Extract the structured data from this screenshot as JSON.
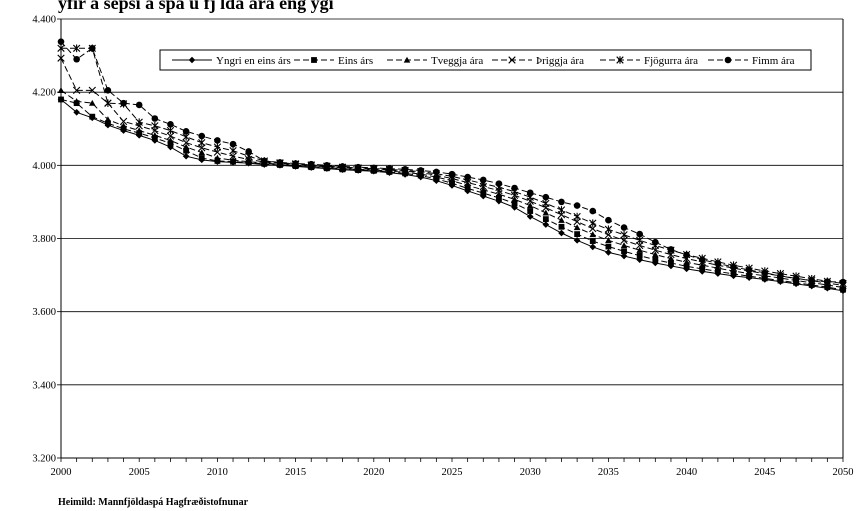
{
  "chart_data": {
    "type": "line",
    "title": "",
    "title_partial_visible": "yfir á sepsi á spá ú fj lda ára eng ygi",
    "xlabel": "",
    "ylabel": "",
    "x": [
      2000,
      2001,
      2002,
      2003,
      2004,
      2005,
      2006,
      2007,
      2008,
      2009,
      2010,
      2011,
      2012,
      2013,
      2014,
      2015,
      2016,
      2017,
      2018,
      2019,
      2020,
      2021,
      2022,
      2023,
      2024,
      2025,
      2026,
      2027,
      2028,
      2029,
      2030,
      2031,
      2032,
      2033,
      2034,
      2035,
      2036,
      2037,
      2038,
      2039,
      2040,
      2041,
      2042,
      2043,
      2044,
      2045,
      2046,
      2047,
      2048,
      2049,
      2050
    ],
    "xlim": [
      2000,
      2050
    ],
    "ylim": [
      3.2,
      4.4
    ],
    "x_ticks": [
      "2000",
      "2005",
      "2010",
      "2015",
      "2020",
      "2025",
      "2030",
      "2035",
      "2040",
      "2045",
      "2050"
    ],
    "y_ticks": [
      "3.200",
      "3.400",
      "3.600",
      "3.800",
      "4.000",
      "4.200",
      "4.400"
    ],
    "grid": "horizontal",
    "legend_position": "top-right",
    "series": [
      {
        "name": "Yngri en eins árs",
        "marker": "diamond",
        "dash": "solid",
        "values": [
          4.18,
          4.145,
          4.13,
          4.11,
          4.095,
          4.082,
          4.068,
          4.05,
          4.025,
          4.015,
          4.01,
          4.008,
          4.006,
          4.002,
          4.0,
          3.997,
          3.994,
          3.991,
          3.988,
          3.986,
          3.984,
          3.98,
          3.975,
          3.968,
          3.958,
          3.945,
          3.93,
          3.916,
          3.902,
          3.885,
          3.86,
          3.838,
          3.815,
          3.795,
          3.777,
          3.762,
          3.752,
          3.742,
          3.733,
          3.725,
          3.717,
          3.71,
          3.704,
          3.698,
          3.693,
          3.688,
          3.682,
          3.676,
          3.67,
          3.664,
          3.657
        ]
      },
      {
        "name": "Eins árs",
        "marker": "square",
        "dash": "6,3",
        "values": [
          4.18,
          4.17,
          4.133,
          4.115,
          4.1,
          4.088,
          4.075,
          4.06,
          4.04,
          4.02,
          4.012,
          4.01,
          4.008,
          4.004,
          4.001,
          3.998,
          3.995,
          3.992,
          3.989,
          3.987,
          3.985,
          3.982,
          3.978,
          3.972,
          3.963,
          3.951,
          3.937,
          3.924,
          3.911,
          3.896,
          3.875,
          3.853,
          3.832,
          3.812,
          3.793,
          3.778,
          3.765,
          3.753,
          3.742,
          3.733,
          3.724,
          3.717,
          3.71,
          3.703,
          3.697,
          3.691,
          3.685,
          3.679,
          3.673,
          3.667,
          3.66
        ]
      },
      {
        "name": "Tveggja ára",
        "marker": "triangle",
        "dash": "6,3",
        "values": [
          4.205,
          4.175,
          4.17,
          4.125,
          4.108,
          4.095,
          4.082,
          4.068,
          4.05,
          4.035,
          4.02,
          4.014,
          4.01,
          4.006,
          4.003,
          4.0,
          3.997,
          3.994,
          3.991,
          3.989,
          3.987,
          3.984,
          3.981,
          3.976,
          3.968,
          3.958,
          3.945,
          3.933,
          3.921,
          3.907,
          3.89,
          3.87,
          3.85,
          3.83,
          3.811,
          3.795,
          3.781,
          3.768,
          3.756,
          3.745,
          3.735,
          3.727,
          3.719,
          3.711,
          3.704,
          3.698,
          3.692,
          3.685,
          3.679,
          3.673,
          3.666
        ]
      },
      {
        "name": "Þriggja ára",
        "marker": "x",
        "dash": "6,3",
        "values": [
          4.293,
          4.205,
          4.205,
          4.17,
          4.12,
          4.108,
          4.095,
          4.08,
          4.062,
          4.048,
          4.036,
          4.025,
          4.016,
          4.009,
          4.005,
          4.002,
          3.999,
          3.996,
          3.993,
          3.991,
          3.989,
          3.987,
          3.984,
          3.98,
          3.973,
          3.964,
          3.953,
          3.942,
          3.931,
          3.918,
          3.902,
          3.884,
          3.865,
          3.846,
          3.827,
          3.81,
          3.795,
          3.781,
          3.768,
          3.756,
          3.745,
          3.736,
          3.727,
          3.719,
          3.711,
          3.704,
          3.698,
          3.691,
          3.685,
          3.678,
          3.672
        ]
      },
      {
        "name": "Fjögurra ára",
        "marker": "star",
        "dash": "6,3",
        "values": [
          4.32,
          4.32,
          4.32,
          4.17,
          4.168,
          4.118,
          4.108,
          4.095,
          4.078,
          4.062,
          4.05,
          4.04,
          4.025,
          4.012,
          4.007,
          4.004,
          4.001,
          3.998,
          3.995,
          3.993,
          3.991,
          3.989,
          3.986,
          3.983,
          3.977,
          3.97,
          3.96,
          3.95,
          3.94,
          3.928,
          3.913,
          3.896,
          3.878,
          3.86,
          3.842,
          3.825,
          3.81,
          3.795,
          3.781,
          3.768,
          3.756,
          3.746,
          3.736,
          3.727,
          3.719,
          3.711,
          3.704,
          3.697,
          3.69,
          3.683,
          3.677
        ]
      },
      {
        "name": "Fimm ára",
        "marker": "circle",
        "dash": "6,3",
        "values": [
          4.338,
          4.29,
          4.32,
          4.205,
          4.17,
          4.165,
          4.128,
          4.112,
          4.093,
          4.08,
          4.068,
          4.058,
          4.038,
          4.012,
          4.008,
          4.005,
          4.003,
          4.0,
          3.997,
          3.995,
          3.993,
          3.991,
          3.989,
          3.986,
          3.982,
          3.976,
          3.968,
          3.96,
          3.95,
          3.938,
          3.925,
          3.913,
          3.9,
          3.89,
          3.875,
          3.85,
          3.83,
          3.812,
          3.79,
          3.77,
          3.755,
          3.742,
          3.732,
          3.722,
          3.714,
          3.706,
          3.698,
          3.69,
          3.685,
          3.682,
          3.681
        ]
      }
    ]
  },
  "source": "Heimild: Mannfjöldaspá Hagfræðistofnunar"
}
